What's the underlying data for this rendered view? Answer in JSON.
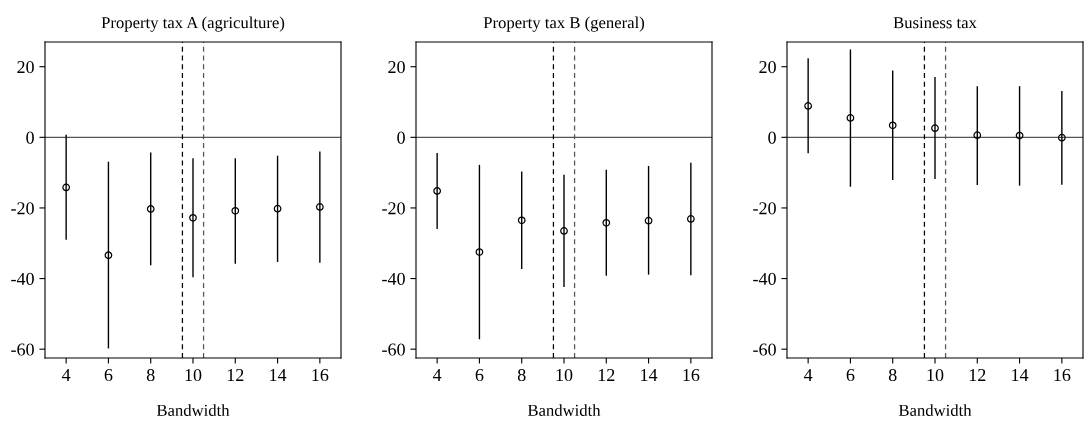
{
  "chart_data": [
    {
      "type": "scatter",
      "title": "Property tax A (agriculture)",
      "xlabel": "Bandwidth",
      "x": [
        4,
        6,
        8,
        10,
        12,
        14,
        16
      ],
      "marker": "circle",
      "grid": false,
      "legend": false,
      "series": [
        {
          "color": "#000000",
          "values": [
            -14.2,
            -33.4,
            -20.3,
            -22.8,
            -20.8,
            -20.2,
            -19.7
          ],
          "errors": [
            [
              -28.8,
              0.5
            ],
            [
              -59.6,
              -7.1
            ],
            [
              -36.0,
              -4.5
            ],
            [
              -39.4,
              -6.1
            ],
            [
              -35.6,
              -6.1
            ],
            [
              -35.1,
              -5.4
            ],
            [
              -35.3,
              -4.2
            ]
          ]
        }
      ],
      "xlim": [
        3,
        17
      ],
      "xticks": [
        4,
        6,
        8,
        10,
        12,
        14,
        16
      ],
      "ylim": [
        -62.5,
        27
      ],
      "yticks": [
        -60,
        -40,
        -20,
        0,
        20
      ],
      "ref_lines": [
        {
          "axis": "y",
          "value": 0,
          "color": "#555555",
          "line_style": "solid"
        },
        {
          "axis": "x",
          "value": 9.5,
          "color": "#000000",
          "line_style": "dashed"
        },
        {
          "axis": "x",
          "value": 10.5,
          "color": "#555555",
          "line_style": "dashed"
        }
      ]
    },
    {
      "type": "scatter",
      "title": "Property tax B (general)",
      "xlabel": "Bandwidth",
      "x": [
        4,
        6,
        8,
        10,
        12,
        14,
        16
      ],
      "marker": "circle",
      "grid": false,
      "legend": false,
      "series": [
        {
          "color": "#000000",
          "values": [
            -15.2,
            -32.5,
            -23.5,
            -26.5,
            -24.2,
            -23.6,
            -23.1
          ],
          "errors": [
            [
              -25.8,
              -4.6
            ],
            [
              -57.0,
              -8.0
            ],
            [
              -37.1,
              -9.9
            ],
            [
              -42.2,
              -10.8
            ],
            [
              -39.0,
              -9.4
            ],
            [
              -38.7,
              -8.3
            ],
            [
              -38.9,
              -7.4
            ]
          ]
        }
      ],
      "xlim": [
        3,
        17
      ],
      "xticks": [
        4,
        6,
        8,
        10,
        12,
        14,
        16
      ],
      "ylim": [
        -62.5,
        27
      ],
      "yticks": [
        -60,
        -40,
        -20,
        0,
        20
      ],
      "ref_lines": [
        {
          "axis": "y",
          "value": 0,
          "color": "#555555",
          "line_style": "solid"
        },
        {
          "axis": "x",
          "value": 9.5,
          "color": "#000000",
          "line_style": "dashed"
        },
        {
          "axis": "x",
          "value": 10.5,
          "color": "#555555",
          "line_style": "dashed"
        }
      ]
    },
    {
      "type": "scatter",
      "title": "Business tax",
      "xlabel": "Bandwidth",
      "x": [
        4,
        6,
        8,
        10,
        12,
        14,
        16
      ],
      "marker": "circle",
      "grid": false,
      "legend": false,
      "series": [
        {
          "color": "#000000",
          "values": [
            8.9,
            5.5,
            3.4,
            2.6,
            0.6,
            0.5,
            -0.1
          ],
          "errors": [
            [
              -4.3,
              22.2
            ],
            [
              -13.8,
              24.7
            ],
            [
              -11.9,
              18.7
            ],
            [
              -11.6,
              16.9
            ],
            [
              -13.3,
              14.3
            ],
            [
              -13.5,
              14.3
            ],
            [
              -13.2,
              12.9
            ]
          ]
        }
      ],
      "xlim": [
        3,
        17
      ],
      "xticks": [
        4,
        6,
        8,
        10,
        12,
        14,
        16
      ],
      "ylim": [
        -62.5,
        27
      ],
      "yticks": [
        -60,
        -40,
        -20,
        0,
        20
      ],
      "ref_lines": [
        {
          "axis": "y",
          "value": 0,
          "color": "#555555",
          "line_style": "solid"
        },
        {
          "axis": "x",
          "value": 9.5,
          "color": "#000000",
          "line_style": "dashed"
        },
        {
          "axis": "x",
          "value": 10.5,
          "color": "#555555",
          "line_style": "dashed"
        }
      ]
    }
  ]
}
